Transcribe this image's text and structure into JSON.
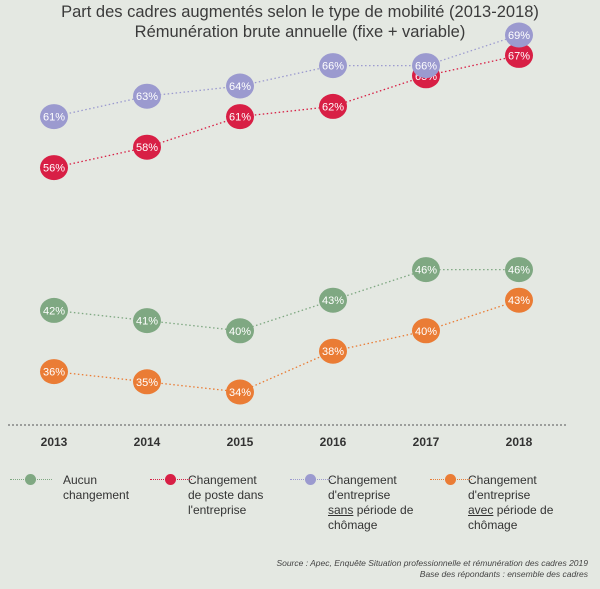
{
  "title": {
    "line1": "Part des cadres augmentés selon le type de mobilité (2013-2018)",
    "line2": "Rémunération brute annuelle (fixe + variable)"
  },
  "chart_data": {
    "type": "line",
    "title": "Part des cadres augmentés selon le type de mobilité (2013-2018)",
    "subtitle": "Rémunération brute annuelle (fixe + variable)",
    "categories": [
      "2013",
      "2014",
      "2015",
      "2016",
      "2017",
      "2018"
    ],
    "value_suffix": "%",
    "ylim": [
      30,
      72
    ],
    "grid": false,
    "legend_position": "bottom",
    "series": [
      {
        "name": "Aucun changement",
        "color": "#7fa882",
        "values": [
          42,
          41,
          40,
          43,
          46,
          46
        ]
      },
      {
        "name": "Changement de poste dans l'entreprise",
        "color": "#d81f45",
        "values": [
          56,
          58,
          61,
          62,
          65,
          67
        ]
      },
      {
        "name": "Changement d'entreprise sans période de chômage",
        "color": "#9b9acf",
        "values": [
          61,
          63,
          64,
          66,
          66,
          69
        ]
      },
      {
        "name": "Changement d'entreprise avec période de chômage",
        "color": "#ea7c35",
        "values": [
          36,
          35,
          34,
          38,
          40,
          43
        ]
      }
    ]
  },
  "legend": [
    {
      "lines": [
        "Aucun",
        "changement"
      ],
      "color": "#7fa882"
    },
    {
      "lines": [
        "Changement",
        "de poste dans",
        "l'entreprise"
      ],
      "color": "#d81f45"
    },
    {
      "lines_pre": [
        "Changement",
        "d'entreprise"
      ],
      "underlined": "sans",
      "rest": " période de",
      "line_last": "chômage",
      "color": "#9b9acf"
    },
    {
      "lines_pre": [
        "Changement",
        "d'entreprise"
      ],
      "underlined": "avec",
      "rest": " période de",
      "line_last": "chômage",
      "color": "#ea7c35"
    }
  ],
  "source": {
    "line1": "Source : Apec, Enquête Situation professionnelle et rémunération des cadres 2019",
    "line2": "Base des répondants : ensemble des cadres"
  }
}
